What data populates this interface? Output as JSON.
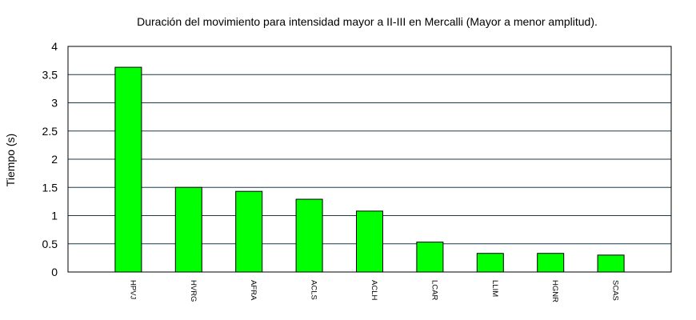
{
  "chart_data": {
    "type": "bar",
    "title": "Duración del movimiento para intensidad mayor a II-III en Mercalli (Mayor a menor amplitud).",
    "xlabel": "",
    "ylabel": "Tiempo (s)",
    "categories": [
      "HPVJ",
      "HVRG",
      "AFRA",
      "ACLS",
      "ACLH",
      "LCAR",
      "LLIM",
      "HGNR",
      "SCAS"
    ],
    "values": [
      3.63,
      1.5,
      1.43,
      1.29,
      1.08,
      0.53,
      0.33,
      0.33,
      0.3
    ],
    "ylim": [
      0,
      4
    ],
    "yticks": [
      "0",
      "0.5",
      "1",
      "1.5",
      "2",
      "2.5",
      "3",
      "3.5",
      "4"
    ],
    "grid": true,
    "legend": "none",
    "bar_color": "#00ff00",
    "gridline_color": "#1f3a4d"
  }
}
